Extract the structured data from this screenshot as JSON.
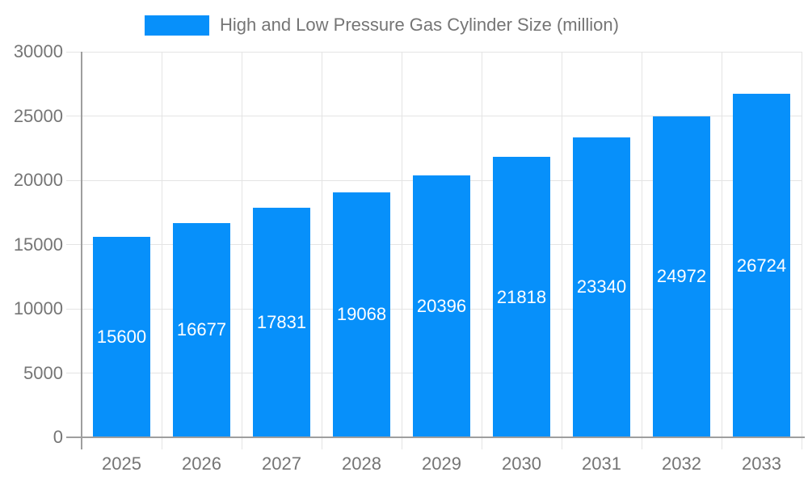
{
  "legend": {
    "label": "High and Low Pressure Gas Cylinder Size (million)"
  },
  "chart_data": {
    "type": "bar",
    "title": "High and Low Pressure Gas Cylinder Size (million)",
    "categories": [
      "2025",
      "2026",
      "2027",
      "2028",
      "2029",
      "2030",
      "2031",
      "2032",
      "2033"
    ],
    "values": [
      15600,
      16677,
      17831,
      19068,
      20396,
      21818,
      23340,
      24972,
      26724
    ],
    "value_labels": [
      "15600",
      "16677",
      "17831",
      "19068",
      "20396",
      "21818",
      "23340",
      "24972",
      "26724"
    ],
    "xlabel": "",
    "ylabel": "",
    "ylim": [
      0,
      30000
    ],
    "y_ticks": [
      0,
      5000,
      10000,
      15000,
      20000,
      25000,
      30000
    ],
    "grid": true,
    "legend_position": "top",
    "colors": {
      "bar": "#0790FA",
      "value_label": "#FFFFFF",
      "axis_text": "#757575",
      "grid_line": "#E4E4E4",
      "axis_line": "#9E9E9E"
    }
  }
}
